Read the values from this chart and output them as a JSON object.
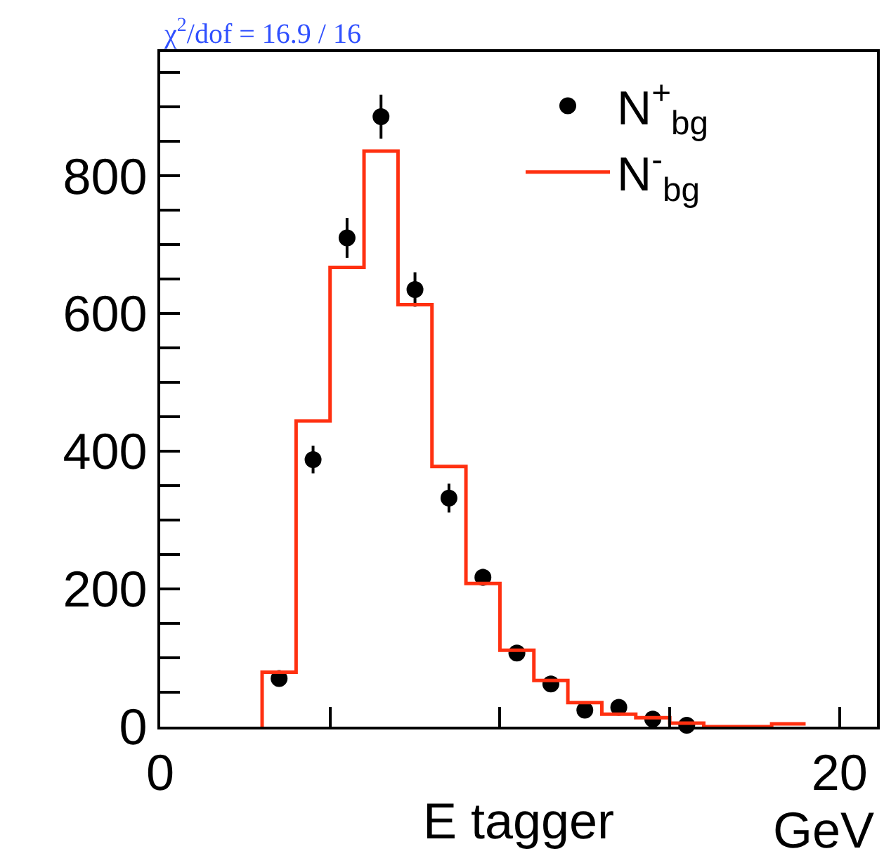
{
  "chart_data": {
    "type": "histogram",
    "annotations": [
      "χ$^{2}$/dof = 16.9 / 16",
      "GeV"
    ],
    "xlabel": "E tagger",
    "xlim": [
      0,
      21.1
    ],
    "xticks": [
      0,
      {
        "value": 5,
        "label": null
      },
      {
        "value": 10,
        "label": null
      },
      {
        "value": 15,
        "label": null
      },
      20
    ],
    "ylim": [
      0,
      980
    ],
    "yticks": [
      0,
      {
        "value": 50,
        "label": null
      },
      {
        "value": 100,
        "label": null
      },
      {
        "value": 150,
        "label": null
      },
      200,
      {
        "value": 250,
        "label": null
      },
      {
        "value": 300,
        "label": null
      },
      {
        "value": 350,
        "label": null
      },
      400,
      {
        "value": 450,
        "label": null
      },
      {
        "value": 500,
        "label": null
      },
      {
        "value": 550,
        "label": null
      },
      600,
      {
        "value": 650,
        "label": null
      },
      {
        "value": 700,
        "label": null
      },
      {
        "value": 750,
        "label": null
      },
      800,
      {
        "value": 850,
        "label": null
      },
      {
        "value": 900,
        "label": null
      },
      {
        "value": 950,
        "label": null
      }
    ],
    "legend": "top right",
    "marker": "circle",
    "series": [
      {
        "name": "N$^{+}$$_{bg}$",
        "type": "scatter",
        "color": "#000000",
        "x": [
          3.5,
          4.5,
          5.5,
          6.5,
          7.5,
          8.5,
          9.5,
          10.5,
          11.5,
          12.5,
          13.5,
          14.5,
          15.5
        ],
        "values": [
          70,
          388,
          710,
          886,
          635,
          332,
          217,
          107,
          62,
          24,
          28,
          11,
          2
        ],
        "errors": [
          8,
          20,
          29,
          32,
          25,
          21,
          12,
          10,
          8,
          5,
          5,
          3,
          2
        ]
      },
      {
        "name": "N$^{-}$$_{bg}$",
        "color": "#ff3010",
        "bins": [
          3,
          4,
          5,
          6,
          7,
          8,
          9,
          10,
          11,
          12,
          13,
          14,
          15,
          16,
          17,
          18,
          19
        ],
        "values": [
          79,
          444,
          667,
          836,
          613,
          378,
          208,
          111,
          67,
          35,
          18,
          13,
          5,
          0,
          0,
          4
        ]
      }
    ]
  }
}
